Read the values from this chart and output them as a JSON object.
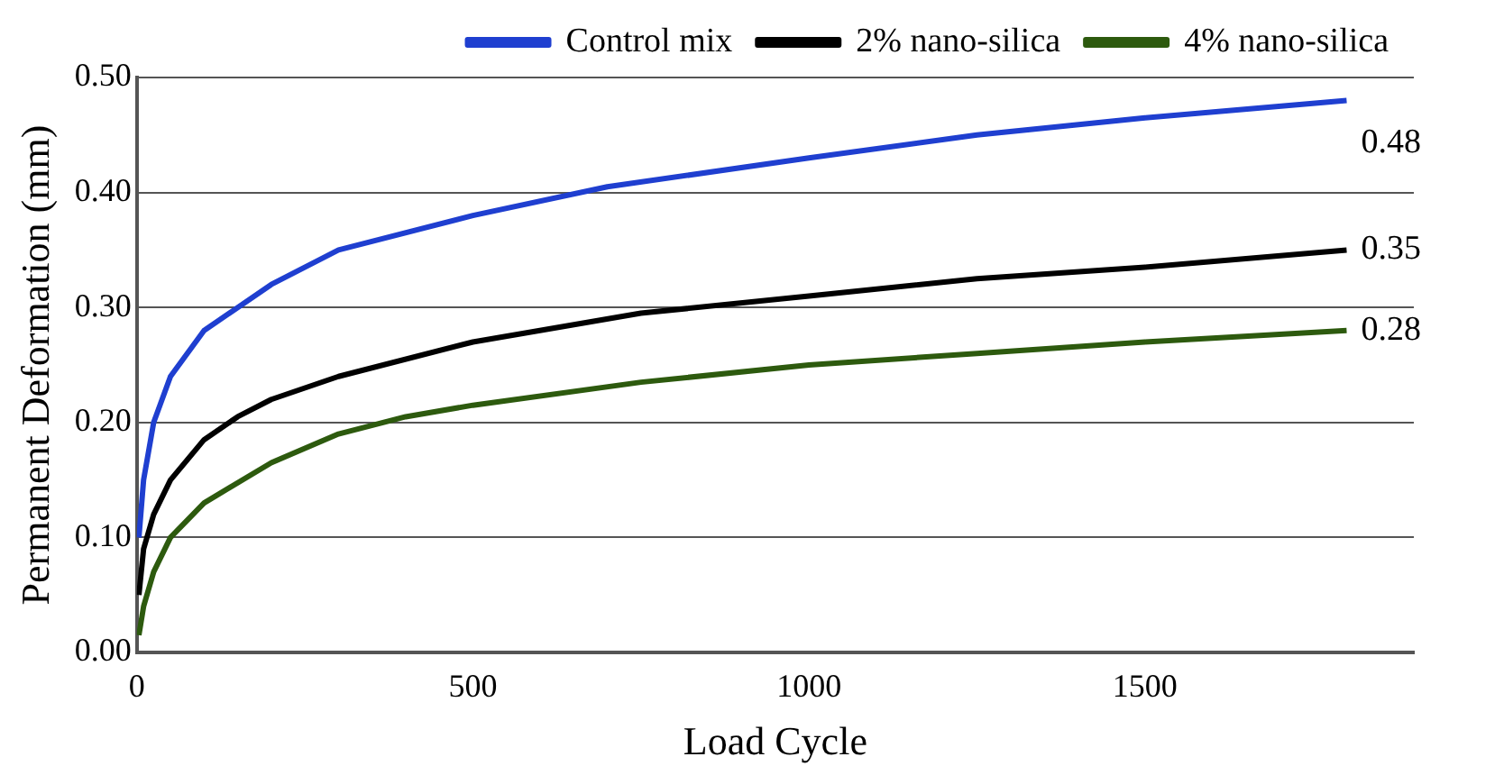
{
  "chart_data": {
    "type": "line",
    "xlabel": "Load Cycle",
    "ylabel": "Permanent Deformation (mm)",
    "xlim": [
      0,
      1900
    ],
    "xticks": [
      0,
      500,
      1000,
      1500
    ],
    "ylim": [
      0,
      0.5
    ],
    "yticks": [
      {
        "value": 0,
        "label": "0.00"
      },
      {
        "value": 0.1,
        "label": "0.10"
      },
      {
        "value": 0.2,
        "label": "0.20"
      },
      {
        "value": 0.3,
        "label": "0.30"
      },
      {
        "value": 0.4,
        "label": "0.40"
      },
      {
        "value": 0.5,
        "label": "0.50"
      }
    ],
    "grid": "y",
    "legend": "top",
    "marker": "none",
    "line_style": "solid",
    "series": [
      {
        "name": "Control mix",
        "color": "#1f3fd0",
        "x": [
          3,
          10,
          25,
          50,
          100,
          200,
          300,
          500,
          700,
          1000,
          1250,
          1500,
          1800
        ],
        "values": [
          0.1,
          0.15,
          0.2,
          0.24,
          0.28,
          0.32,
          0.35,
          0.38,
          0.405,
          0.43,
          0.45,
          0.465,
          0.48
        ],
        "value_labels": [
          null,
          null,
          null,
          null,
          null,
          null,
          null,
          null,
          null,
          null,
          null,
          null,
          "0.48"
        ]
      },
      {
        "name": "2% nano-silica",
        "color": "#000000",
        "x": [
          3,
          10,
          25,
          50,
          100,
          150,
          200,
          300,
          500,
          750,
          1000,
          1250,
          1500,
          1800
        ],
        "values": [
          0.05,
          0.09,
          0.12,
          0.15,
          0.185,
          0.205,
          0.22,
          0.24,
          0.27,
          0.295,
          0.31,
          0.325,
          0.335,
          0.35
        ],
        "value_labels": [
          null,
          null,
          null,
          null,
          null,
          null,
          null,
          null,
          null,
          null,
          null,
          null,
          null,
          "0.35"
        ]
      },
      {
        "name": "4% nano-silica",
        "color": "#2d5a0e",
        "x": [
          3,
          10,
          25,
          50,
          100,
          200,
          300,
          400,
          500,
          750,
          1000,
          1250,
          1500,
          1800
        ],
        "values": [
          0.015,
          0.04,
          0.07,
          0.1,
          0.13,
          0.165,
          0.19,
          0.205,
          0.215,
          0.235,
          0.25,
          0.26,
          0.27,
          0.28
        ],
        "value_labels": [
          null,
          null,
          null,
          null,
          null,
          null,
          null,
          null,
          null,
          null,
          null,
          null,
          null,
          "0.28"
        ]
      }
    ]
  }
}
